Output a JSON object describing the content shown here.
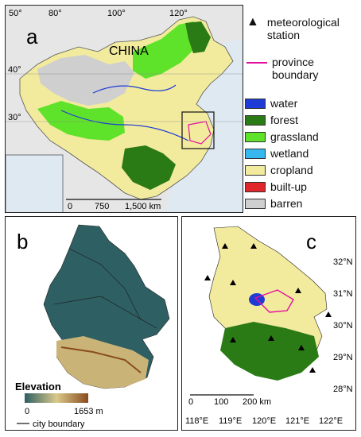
{
  "panel_a": {
    "label": "a",
    "country_label": "CHINA",
    "lon_ticks": [
      "50°",
      "80°",
      "100°",
      "120°"
    ],
    "lat_ticks": [
      "40°",
      "30°"
    ],
    "scale_labels": [
      "0",
      "750",
      "1,500 km"
    ]
  },
  "legend": {
    "station_label": "meteorological station",
    "province_label": "province boundary",
    "classes": [
      {
        "label": "water",
        "color": "#1f3bd6"
      },
      {
        "label": "forest",
        "color": "#2a7a16"
      },
      {
        "label": "grassland",
        "color": "#5fe22a"
      },
      {
        "label": "wetland",
        "color": "#35b7f0"
      },
      {
        "label": "cropland",
        "color": "#f2eb9e"
      },
      {
        "label": "built-up",
        "color": "#e0262a"
      },
      {
        "label": "barren",
        "color": "#cfcfcf"
      }
    ],
    "boundary_color": "#e3109d"
  },
  "panel_b": {
    "label": "b",
    "elevation_title": "Elevation",
    "elevation_min": "0",
    "elevation_max": "1653 m",
    "city_boundary_label": "city boundary",
    "ramp_colors": [
      "#2e5f62",
      "#d9c98a",
      "#8a4b1f"
    ]
  },
  "panel_c": {
    "label": "c",
    "lat_ticks": [
      "32°N",
      "31°N",
      "30°N",
      "29°N",
      "28°N"
    ],
    "lon_ticks": [
      "118°E",
      "119°E",
      "120°E",
      "121°E",
      "122°E"
    ],
    "scale_labels": [
      "0",
      "100",
      "200 km"
    ]
  }
}
